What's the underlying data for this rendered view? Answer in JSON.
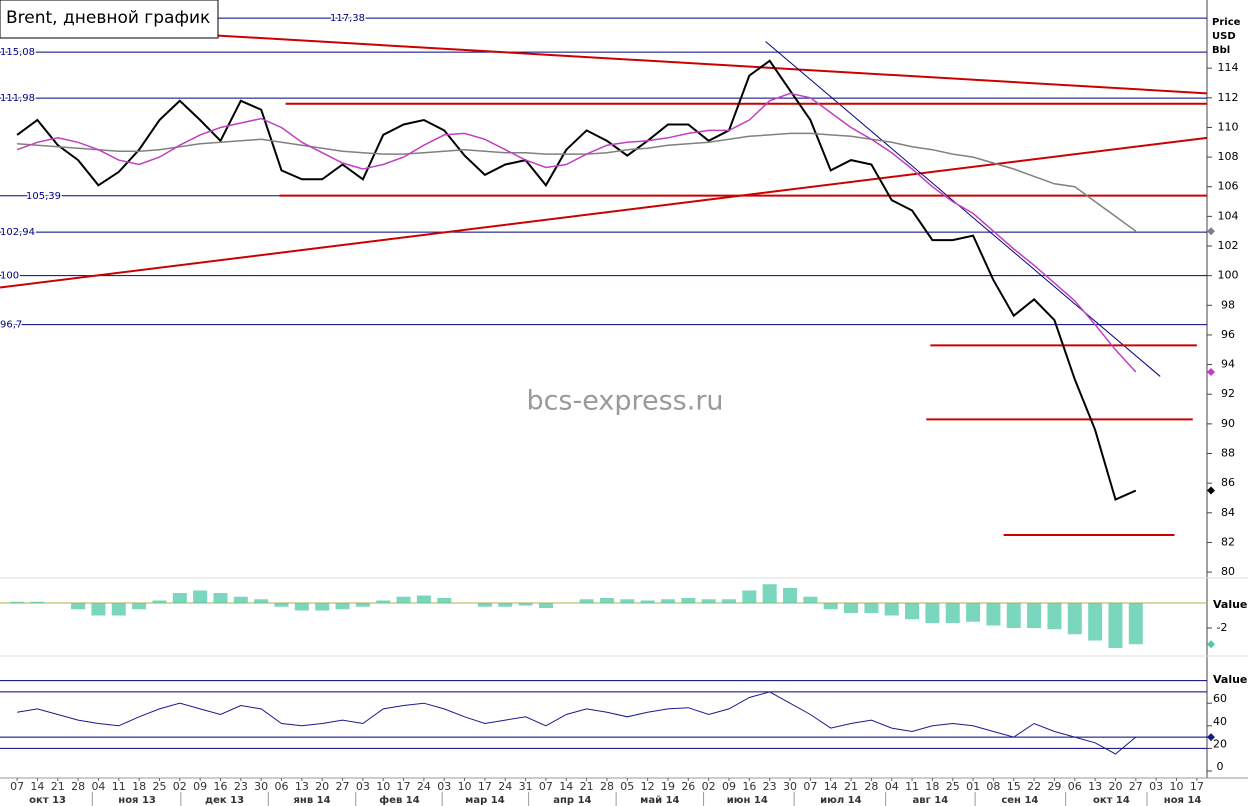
{
  "chart_data": [
    {
      "type": "line",
      "title": "Brent, дневной график",
      "watermark": "bcs-express.ru",
      "axis_title": [
        "Price",
        "USD",
        "Bbl"
      ],
      "xlim": [
        -0.84,
        58.5
      ],
      "xticks": [
        {
          "value": 0,
          "label": "07"
        },
        {
          "value": 1,
          "label": "14"
        },
        {
          "value": 2,
          "label": "21"
        },
        {
          "value": 3,
          "label": "28"
        },
        {
          "value": 4,
          "label": "04"
        },
        {
          "value": 5,
          "label": "11"
        },
        {
          "value": 6,
          "label": "18"
        },
        {
          "value": 7,
          "label": "25"
        },
        {
          "value": 8,
          "label": "02"
        },
        {
          "value": 9,
          "label": "09"
        },
        {
          "value": 10,
          "label": "16"
        },
        {
          "value": 11,
          "label": "23"
        },
        {
          "value": 12,
          "label": "30"
        },
        {
          "value": 13,
          "label": "06"
        },
        {
          "value": 14,
          "label": "13"
        },
        {
          "value": 15,
          "label": "20"
        },
        {
          "value": 16,
          "label": "27"
        },
        {
          "value": 17,
          "label": "03"
        },
        {
          "value": 18,
          "label": "10"
        },
        {
          "value": 19,
          "label": "17"
        },
        {
          "value": 20,
          "label": "24"
        },
        {
          "value": 21,
          "label": "03"
        },
        {
          "value": 22,
          "label": "10"
        },
        {
          "value": 23,
          "label": "17"
        },
        {
          "value": 24,
          "label": "24"
        },
        {
          "value": 25,
          "label": "31"
        },
        {
          "value": 26,
          "label": "07"
        },
        {
          "value": 27,
          "label": "14"
        },
        {
          "value": 28,
          "label": "21"
        },
        {
          "value": 29,
          "label": "28"
        },
        {
          "value": 30,
          "label": "05"
        },
        {
          "value": 31,
          "label": "12"
        },
        {
          "value": 32,
          "label": "19"
        },
        {
          "value": 33,
          "label": "26"
        },
        {
          "value": 34,
          "label": "02"
        },
        {
          "value": 35,
          "label": "09"
        },
        {
          "value": 36,
          "label": "16"
        },
        {
          "value": 37,
          "label": "23"
        },
        {
          "value": 38,
          "label": "30"
        },
        {
          "value": 39,
          "label": "07"
        },
        {
          "value": 40,
          "label": "14"
        },
        {
          "value": 41,
          "label": "21"
        },
        {
          "value": 42,
          "label": "28"
        },
        {
          "value": 43,
          "label": "04"
        },
        {
          "value": 44,
          "label": "11"
        },
        {
          "value": 45,
          "label": "18"
        },
        {
          "value": 46,
          "label": "25"
        },
        {
          "value": 47,
          "label": "01"
        },
        {
          "value": 48,
          "label": "08"
        },
        {
          "value": 49,
          "label": "15"
        },
        {
          "value": 50,
          "label": "22"
        },
        {
          "value": 51,
          "label": "29"
        },
        {
          "value": 52,
          "label": "06"
        },
        {
          "value": 53,
          "label": "13"
        },
        {
          "value": 54,
          "label": "20"
        },
        {
          "value": 55,
          "label": "27"
        },
        {
          "value": 56,
          "label": "03"
        },
        {
          "value": 57,
          "label": "10"
        },
        {
          "value": 58,
          "label": "17"
        }
      ],
      "months": [
        {
          "label": "окт 13",
          "at": 1.5
        },
        {
          "label": "ноя 13",
          "at": 5.9
        },
        {
          "label": "дек 13",
          "at": 10.2
        },
        {
          "label": "янв 14",
          "at": 14.5
        },
        {
          "label": "фев 14",
          "at": 18.8
        },
        {
          "label": "мар 14",
          "at": 23.0
        },
        {
          "label": "апр 14",
          "at": 27.3
        },
        {
          "label": "май 14",
          "at": 31.6
        },
        {
          "label": "июн 14",
          "at": 35.9
        },
        {
          "label": "июл 14",
          "at": 40.5
        },
        {
          "label": "авг 14",
          "at": 44.9
        },
        {
          "label": "сен 14",
          "at": 49.3
        },
        {
          "label": "окт 14",
          "at": 53.8
        },
        {
          "label": "ноя 14",
          "at": 57.3
        }
      ],
      "ylim": [
        79.6,
        118.6
      ],
      "yticks": [
        80,
        82,
        84,
        86,
        88,
        90,
        92,
        94,
        96,
        98,
        100,
        102,
        104,
        106,
        108,
        110,
        112,
        114
      ],
      "series": [
        {
          "color": "#000000",
          "values": [
            109.5,
            110.5,
            108.8,
            107.8,
            106.1,
            107,
            108.5,
            110.5,
            111.8,
            110.5,
            109.1,
            111.8,
            111.2,
            107.1,
            106.5,
            106.5,
            107.5,
            106.5,
            109.5,
            110.2,
            110.5,
            109.8,
            108.1,
            106.8,
            107.5,
            107.8,
            106.1,
            108.5,
            109.8,
            109.1,
            108.1,
            109.1,
            110.2,
            110.2,
            109.1,
            109.8,
            113.5,
            114.5,
            112.5,
            110.5,
            107.1,
            107.8,
            107.5,
            105.1,
            104.4,
            102.4,
            102.4,
            102.7,
            99.7,
            97.3,
            98.4,
            97.0,
            93.0,
            89.6,
            84.9,
            85.5
          ]
        },
        {
          "color": "#808080",
          "values": [
            108.9,
            108.8,
            108.7,
            108.6,
            108.5,
            108.4,
            108.4,
            108.5,
            108.7,
            108.9,
            109.0,
            109.1,
            109.2,
            109.0,
            108.8,
            108.6,
            108.4,
            108.3,
            108.2,
            108.2,
            108.3,
            108.4,
            108.5,
            108.4,
            108.3,
            108.3,
            108.2,
            108.2,
            108.2,
            108.3,
            108.5,
            108.6,
            108.8,
            108.9,
            109.0,
            109.2,
            109.4,
            109.5,
            109.6,
            109.6,
            109.5,
            109.4,
            109.2,
            109.0,
            108.7,
            108.5,
            108.2,
            108.0,
            107.6,
            107.2,
            106.7,
            106.2,
            106.0,
            105.0,
            104.0,
            103.0
          ]
        },
        {
          "color": "#c040c0",
          "values": [
            108.5,
            109,
            109.3,
            109,
            108.5,
            107.8,
            107.5,
            108,
            108.8,
            109.5,
            110,
            110.3,
            110.6,
            110,
            109,
            108.3,
            107.6,
            107.2,
            107.5,
            108,
            108.8,
            109.5,
            109.6,
            109.2,
            108.5,
            107.8,
            107.3,
            107.5,
            108.2,
            108.8,
            109,
            109.1,
            109.3,
            109.6,
            109.8,
            109.8,
            110.5,
            111.8,
            112.3,
            112,
            111,
            110,
            109.2,
            108.3,
            107.2,
            106,
            105,
            104.2,
            103,
            101.8,
            100.7,
            99.5,
            98.3,
            96.7,
            95,
            93.5
          ]
        }
      ],
      "levels": [
        {
          "value": 117.38,
          "label": "117,38"
        },
        {
          "value": 115.08,
          "label": "115,08"
        },
        {
          "value": 111.98,
          "label": "111,98"
        },
        {
          "value": 105.39,
          "label": "105,39"
        },
        {
          "value": 102.94,
          "label": "102,94"
        },
        100,
        {
          "value": 96.7,
          "label": "96,7"
        }
      ],
      "level_color": "#000080",
      "trendlines": [
        {
          "color": "#cc0000",
          "x": [
            9.9,
            58.5
          ],
          "values": [
            116.2,
            112.3
          ]
        },
        {
          "color": "#cc0000",
          "x": [
            -0.84,
            58.5
          ],
          "values": [
            99.2,
            109.3
          ]
        },
        {
          "color": "#000080",
          "x": [
            36.8,
            56.2
          ],
          "values": [
            115.8,
            93.2
          ]
        },
        {
          "color": "#cc0000",
          "x": [
            13.2,
            58.5
          ],
          "values": [
            111.6,
            111.6
          ]
        },
        {
          "color": "#cc0000",
          "x": [
            12.9,
            58.5
          ],
          "values": [
            105.4,
            105.4
          ]
        },
        {
          "color": "#cc0000",
          "x": [
            44.9,
            58.0
          ],
          "values": [
            95.3,
            95.3
          ]
        },
        {
          "color": "#cc0000",
          "x": [
            44.7,
            57.8
          ],
          "values": [
            90.3,
            90.3
          ]
        },
        {
          "color": "#cc0000",
          "x": [
            48.5,
            56.9
          ],
          "values": [
            82.5,
            82.5
          ]
        }
      ]
    },
    {
      "type": "bar",
      "axis_title": "Value",
      "ylim": [
        -4.16,
        1.84
      ],
      "yticks": [
        -2
      ],
      "color": "#4fc8a8",
      "zero_color": "#b0b040",
      "values": [
        0.1,
        0.1,
        0,
        -0.5,
        -1,
        -1,
        -0.5,
        0.2,
        0.8,
        1,
        0.8,
        0.5,
        0.3,
        -0.3,
        -0.6,
        -0.6,
        -0.5,
        -0.3,
        0.2,
        0.5,
        0.6,
        0.4,
        0,
        -0.3,
        -0.3,
        -0.2,
        -0.4,
        0,
        0.3,
        0.4,
        0.3,
        0.2,
        0.3,
        0.4,
        0.3,
        0.3,
        1,
        1.5,
        1.2,
        0.5,
        -0.5,
        -0.8,
        -0.8,
        -1,
        -1.3,
        -1.6,
        -1.6,
        -1.5,
        -1.8,
        -2,
        -2,
        -2.1,
        -2.5,
        -3,
        -3.6,
        -3.3
      ]
    },
    {
      "type": "line",
      "axis_title": "Value",
      "ylim": [
        0,
        100
      ],
      "yticks": [
        0,
        20,
        40,
        60
      ],
      "levels": [
        80,
        70,
        30,
        20
      ],
      "level_color": "#000080",
      "color": "#1a1a8c",
      "values": [
        52,
        55,
        50,
        45,
        42,
        40,
        48,
        55,
        60,
        55,
        50,
        58,
        55,
        42,
        40,
        42,
        45,
        42,
        55,
        58,
        60,
        55,
        48,
        42,
        45,
        48,
        40,
        50,
        55,
        52,
        48,
        52,
        55,
        56,
        50,
        55,
        65,
        70,
        60,
        50,
        38,
        42,
        45,
        38,
        35,
        40,
        42,
        40,
        35,
        30,
        42,
        35,
        30,
        25,
        15,
        30
      ]
    }
  ]
}
